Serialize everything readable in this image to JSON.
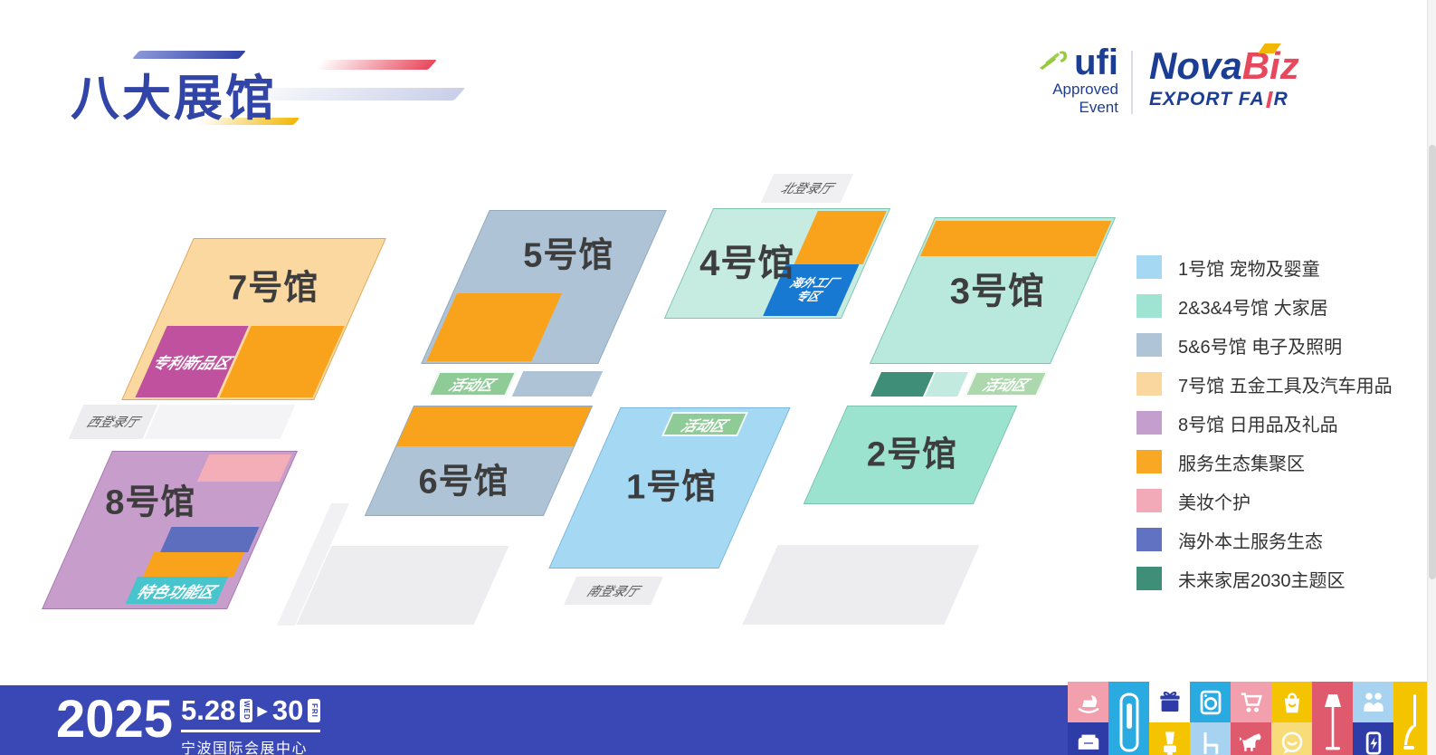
{
  "title": "八大展馆",
  "logos": {
    "ufi": {
      "name": "ufi",
      "approved": "Approved",
      "event": "Event"
    },
    "novabiz": {
      "nova": "Nova",
      "biz": "Biz",
      "export": "EXPORT FA",
      "r": "R"
    }
  },
  "map": {
    "halls": {
      "h1": "1号馆",
      "h2": "2号馆",
      "h3": "3号馆",
      "h4": "4号馆",
      "h5": "5号馆",
      "h6": "6号馆",
      "h7": "7号馆",
      "h8": "8号馆"
    },
    "zones": {
      "patent": "专利新品区",
      "feature": "特色功能区",
      "overseas_line1": "海外工厂",
      "overseas_line2": "专区",
      "activity": "活动区"
    },
    "lobbies": {
      "west": "西登录厅",
      "north": "北登录厅",
      "south": "南登录厅"
    }
  },
  "legend": {
    "items": [
      {
        "label": "1号馆 宠物及婴童",
        "color": "#A5D8F3"
      },
      {
        "label": "2&3&4号馆 大家居",
        "color": "#9FE4D3"
      },
      {
        "label": "5&6号馆 电子及照明",
        "color": "#AFC4D6"
      },
      {
        "label": "7号馆 五金工具及汽车用品",
        "color": "#FAD79E"
      },
      {
        "label": "8号馆 日用品及礼品",
        "color": "#C49FCD"
      },
      {
        "label": "服务生态集聚区",
        "color": "#F9A823"
      },
      {
        "label": "美妆个护",
        "color": "#F2A9B8"
      },
      {
        "label": "海外本土服务生态",
        "color": "#6272C2"
      },
      {
        "label": "未来家居2030主题区",
        "color": "#3E8E78"
      }
    ]
  },
  "footer": {
    "year": "2025",
    "date_start": "5.28",
    "day_start": "WED",
    "arrow": "▶",
    "date_end": "30",
    "day_end": "FRI",
    "venue": "宁波国际会展中心",
    "tiles": [
      {
        "icon": "rocking-horse",
        "bg": "#F2A0AE"
      },
      {
        "icon": "armchair",
        "bg": "#2D3CA6"
      },
      {
        "icon": "air-purifier",
        "bg": "#29ABE2",
        "tall": true
      },
      {
        "icon": "gift",
        "bg": "#FFFFFF",
        "fg": "#2D3CA6"
      },
      {
        "icon": "blender",
        "bg": "#F5C400"
      },
      {
        "icon": "washing-machine",
        "bg": "#29ABE2"
      },
      {
        "icon": "chair",
        "bg": "#A8D3F0"
      },
      {
        "icon": "shopping-cart",
        "bg": "#F2A0AE"
      },
      {
        "icon": "dog",
        "bg": "#E05A6D"
      },
      {
        "icon": "shopping-bag",
        "bg": "#F5C400"
      },
      {
        "icon": "chat-smiley",
        "bg": "#F8DC7A"
      },
      {
        "icon": "floor-lamp",
        "bg": "#E05A6D",
        "tall": true
      },
      {
        "icon": "handshake",
        "bg": "#A8D3F0"
      },
      {
        "icon": "power-bank",
        "bg": "#2D3CA6"
      },
      {
        "icon": "vacuum",
        "bg": "#F5C400",
        "tall": true
      }
    ]
  }
}
